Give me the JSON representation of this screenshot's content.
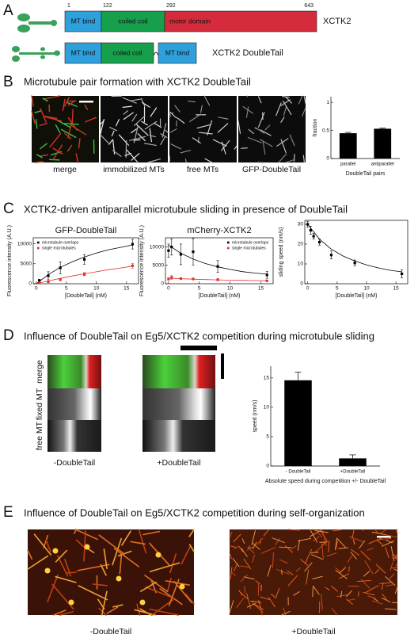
{
  "panel_a": {
    "letter": "A",
    "residues": [
      1,
      122,
      292,
      643
    ],
    "constructs": [
      {
        "name": "XCTK2",
        "domains": [
          "MT bind",
          "coiled coil",
          "motor domain"
        ]
      },
      {
        "name": "XCTK2 DoubleTail",
        "domains": [
          "MT bind",
          "coiled coil",
          "MT bind"
        ]
      }
    ]
  },
  "panel_b": {
    "letter": "B",
    "title": "Microtubule pair formation with XCTK2 DoubleTail",
    "images": [
      "merge",
      "immobilized MTs",
      "free MTs",
      "GFP-DoubleTail"
    ]
  },
  "panel_c": {
    "letter": "C",
    "title": "XCTK2-driven antiparallel microtubule sliding in presence of DoubleTail"
  },
  "panel_d": {
    "letter": "D",
    "title": "Influence of DoubleTail on Eg5/XCTK2 competition during microtubule sliding",
    "kymograph_rows": [
      "merge",
      "fixed MT",
      "free MT"
    ],
    "conditions": [
      "-DoubleTail",
      "+DoubleTail"
    ]
  },
  "panel_e": {
    "letter": "E",
    "title": "Influence of DoubleTail on Eg5/XCTK2 competition during self-organization",
    "conditions": [
      "-DoubleTail",
      "+DoubleTail"
    ]
  },
  "chart_data": [
    {
      "type": "bar",
      "categories": [
        "parallel",
        "antiparallel"
      ],
      "values": [
        0.45,
        0.53
      ],
      "errors": [
        0.015,
        0.01
      ],
      "color": "#000000",
      "ylim": [
        0,
        1.1
      ],
      "yticks": [
        0,
        0.5,
        1
      ],
      "ylabel": "fraction",
      "xlabel": "DoubleTail pairs"
    },
    {
      "type": "scatter",
      "title": "GFP-DoubleTail",
      "x": [
        0.5,
        2,
        4,
        8,
        16
      ],
      "xlim": [
        -0.5,
        17
      ],
      "xticks": [
        0,
        5,
        10,
        15
      ],
      "ylim": [
        0,
        11500
      ],
      "yticks": [
        0,
        5000,
        10000
      ],
      "xlabel": "[DoubleTail] (nM)",
      "ylabel": "Fluorescence intensity (A.U.)",
      "legend": "upper left",
      "fit_x": [
        0,
        2,
        4,
        6,
        8,
        10,
        12,
        14,
        16
      ],
      "series": [
        {
          "name": "microtubule overlaps",
          "color": "#000000",
          "values": [
            800,
            2000,
            4000,
            6100,
            9900
          ],
          "errors": [
            300,
            1000,
            1500,
            1200,
            1200
          ],
          "fit": [
            0,
            2300,
            4100,
            5500,
            6700,
            7700,
            8500,
            9100,
            9700
          ]
        },
        {
          "name": "single microtubules",
          "color": "#e0302a",
          "values": [
            300,
            500,
            1000,
            2400,
            4500
          ],
          "errors": [
            100,
            200,
            250,
            400,
            600
          ],
          "fit": [
            0,
            700,
            1350,
            1950,
            2500,
            3000,
            3500,
            3950,
            4400
          ]
        }
      ]
    },
    {
      "type": "scatter",
      "title": "mCherry-XCTK2",
      "x": [
        0,
        0.5,
        2,
        4,
        8,
        16
      ],
      "xlim": [
        -0.5,
        17
      ],
      "xticks": [
        0,
        5,
        10,
        15
      ],
      "ylim": [
        0,
        12500
      ],
      "yticks": [
        0,
        5000,
        10000
      ],
      "xlabel": "[DoubleTail] (nM)",
      "ylabel": "Fluorescence intensity (A.U.)",
      "legend": "upper right",
      "fit_x": [
        0,
        2,
        4,
        6,
        8,
        10,
        12,
        14,
        16
      ],
      "series": [
        {
          "name": "microtubule overlaps",
          "color": "#000000",
          "values": [
            9000,
            10000,
            8000,
            8700,
            4700,
            2400
          ],
          "errors": [
            1800,
            2200,
            2800,
            3600,
            1600,
            900
          ],
          "fit": [
            10500,
            8300,
            6700,
            5500,
            4600,
            3900,
            3300,
            2900,
            2600
          ]
        },
        {
          "name": "single microtubules",
          "color": "#e0302a",
          "values": [
            1300,
            1700,
            1400,
            1300,
            1100,
            800
          ],
          "errors": [
            300,
            500,
            200,
            150,
            300,
            200
          ],
          "fit": [
            1500,
            1350,
            1250,
            1150,
            1050,
            980,
            920,
            870,
            820
          ]
        }
      ]
    },
    {
      "type": "scatter",
      "x": [
        0,
        0.5,
        1,
        2,
        4,
        8,
        16
      ],
      "xlim": [
        -0.5,
        17
      ],
      "xticks": [
        0,
        5,
        10,
        15
      ],
      "ylim": [
        0,
        32
      ],
      "yticks": [
        0,
        10,
        20,
        30
      ],
      "xlabel": "[DoubleTail] (nM)",
      "ylabel": "sliding speed (nm/s)",
      "fit_x": [
        0,
        2,
        4,
        6,
        8,
        10,
        12,
        14,
        16
      ],
      "series": [
        {
          "color": "#000000",
          "values": [
            30,
            27,
            24,
            21,
            14.5,
            10.5,
            5
          ],
          "errors": [
            1.5,
            2,
            1.5,
            1.5,
            2,
            1.5,
            2
          ],
          "fit": [
            30,
            22.5,
            17.5,
            14,
            11.5,
            9.5,
            8,
            6.8,
            6
          ]
        }
      ]
    },
    {
      "type": "bar",
      "categories": [
        "- DoubleTail",
        "+DoubleTail"
      ],
      "values": [
        14.6,
        1.3
      ],
      "errors": [
        1.4,
        0.6
      ],
      "color": "#000000",
      "ylim": [
        0,
        17
      ],
      "yticks": [
        0,
        5,
        10,
        15
      ],
      "ylabel": "speed (nm/s)",
      "xlabel": "Absolute speed during competition +/- DoubleTail"
    }
  ]
}
